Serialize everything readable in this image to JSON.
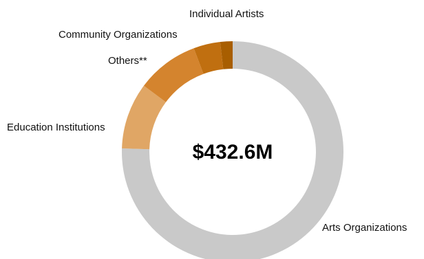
{
  "chart_data": {
    "type": "pie",
    "variant": "donut",
    "center_label": "$432.6M",
    "slices": [
      {
        "label": "Arts Organizations",
        "value": 75.5,
        "color": "#c9c9c9"
      },
      {
        "label": "Education Institutions",
        "value": 9.7,
        "color": "#e0a665"
      },
      {
        "label": "Others**",
        "value": 9.1,
        "color": "#d4842e"
      },
      {
        "label": "Community Organizations",
        "value": 3.9,
        "color": "#c06f10"
      },
      {
        "label": "Individual Artists",
        "value": 1.8,
        "color": "#a85e00"
      }
    ]
  }
}
